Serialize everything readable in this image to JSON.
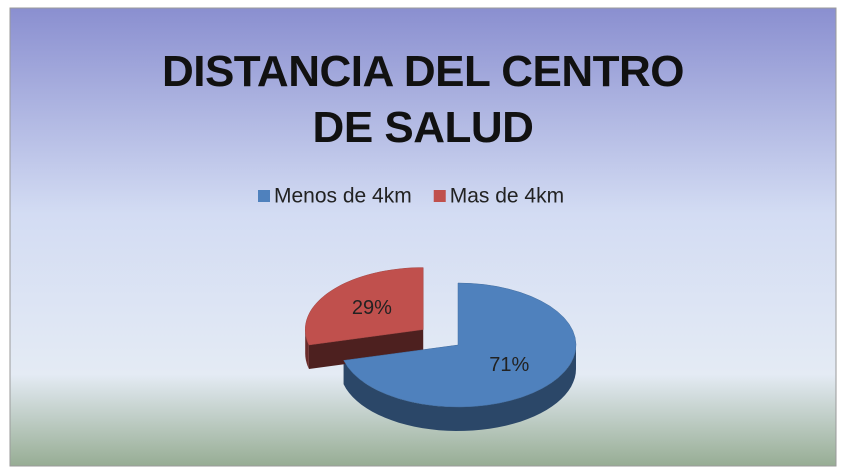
{
  "chart_data": {
    "type": "pie",
    "title": "DISTANCIA DEL CENTRO DE SALUD",
    "categories": [
      "Menos de 4km",
      "Mas de 4km"
    ],
    "values": [
      71,
      29
    ],
    "value_labels": [
      "71%",
      "29%"
    ],
    "colors": [
      "#4f81bd",
      "#c0504d"
    ],
    "legend": "top"
  }
}
